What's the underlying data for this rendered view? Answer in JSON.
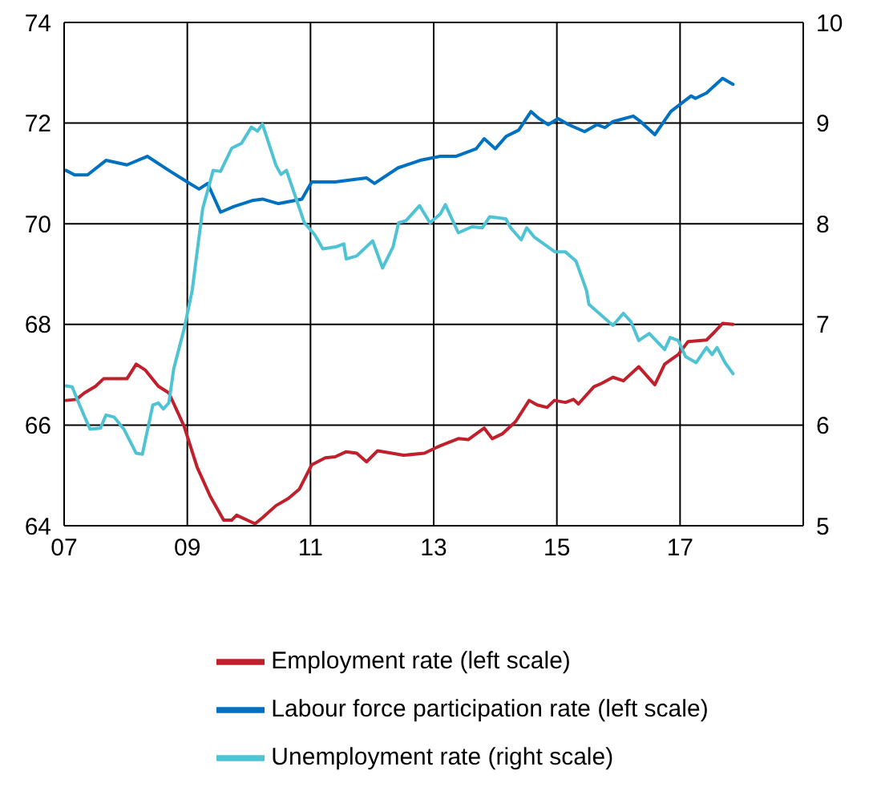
{
  "chart_data": {
    "type": "line",
    "xlim": [
      2007,
      2019
    ],
    "xticks": [
      {
        "value": 2007,
        "label": "07"
      },
      {
        "value": 2009,
        "label": "09"
      },
      {
        "value": 2011,
        "label": "11"
      },
      {
        "value": 2013,
        "label": "13"
      },
      {
        "value": 2015,
        "label": "15"
      },
      {
        "value": 2017,
        "label": "17"
      }
    ],
    "ylim": [
      64,
      74
    ],
    "yticks": [
      64,
      66,
      68,
      70,
      72,
      74
    ],
    "y2lim": [
      5,
      10
    ],
    "y2ticks": [
      5,
      6,
      7,
      8,
      9,
      10
    ],
    "grid": true,
    "legend": "bottom",
    "marker": "none",
    "line_style": "solid",
    "series": [
      {
        "name": "Labour force participation rate (left scale)",
        "color": "#0070c0",
        "x": [
          2007.03,
          2007.17,
          2007.38,
          2007.68,
          2008.02,
          2008.35,
          2008.7,
          2009.04,
          2009.19,
          2009.33,
          2009.54,
          2009.75,
          2010.05,
          2010.22,
          2010.48,
          2010.86,
          2011.02,
          2011.4,
          2011.91,
          2012.04,
          2012.42,
          2012.78,
          2013.11,
          2013.36,
          2013.69,
          2013.82,
          2014.0,
          2014.18,
          2014.38,
          2014.58,
          2014.71,
          2014.86,
          2015.02,
          2015.19,
          2015.45,
          2015.65,
          2015.78,
          2015.91,
          2016.24,
          2016.36,
          2016.59,
          2016.85,
          2017.18,
          2017.25,
          2017.43,
          2017.69,
          2017.86
        ],
        "values": [
          71.06,
          70.97,
          70.97,
          71.26,
          71.17,
          71.34,
          71.06,
          70.8,
          70.69,
          70.8,
          70.23,
          70.34,
          70.46,
          70.49,
          70.4,
          70.49,
          70.83,
          70.83,
          70.91,
          70.8,
          71.11,
          71.26,
          71.34,
          71.34,
          71.49,
          71.69,
          71.49,
          71.74,
          71.86,
          72.23,
          72.09,
          71.97,
          72.09,
          71.97,
          71.83,
          71.97,
          71.91,
          72.03,
          72.14,
          72.03,
          71.77,
          72.23,
          72.54,
          72.49,
          72.6,
          72.89,
          72.77
        ]
      },
      {
        "name": "Employment rate (left scale)",
        "color": "#c0202c",
        "x": [
          2007.03,
          2007.2,
          2007.33,
          2007.51,
          2007.64,
          2007.84,
          2008.02,
          2008.17,
          2008.32,
          2008.53,
          2008.7,
          2008.95,
          2009.16,
          2009.37,
          2009.59,
          2009.72,
          2009.8,
          2010.1,
          2010.22,
          2010.44,
          2010.64,
          2010.82,
          2011.02,
          2011.24,
          2011.4,
          2011.58,
          2011.75,
          2011.91,
          2012.09,
          2012.51,
          2012.85,
          2013.02,
          2013.11,
          2013.4,
          2013.56,
          2013.82,
          2013.95,
          2014.12,
          2014.33,
          2014.55,
          2014.68,
          2014.84,
          2014.96,
          2015.14,
          2015.27,
          2015.35,
          2015.6,
          2015.73,
          2015.91,
          2016.08,
          2016.33,
          2016.59,
          2016.75,
          2016.97,
          2017.13,
          2017.43,
          2017.56,
          2017.69,
          2017.86
        ],
        "values": [
          66.49,
          66.51,
          66.64,
          66.77,
          66.92,
          66.92,
          66.92,
          67.21,
          67.09,
          66.77,
          66.64,
          65.97,
          65.16,
          64.59,
          64.11,
          64.11,
          64.21,
          64.04,
          64.16,
          64.4,
          64.54,
          64.73,
          65.21,
          65.35,
          65.37,
          65.47,
          65.44,
          65.27,
          65.49,
          65.4,
          65.44,
          65.54,
          65.59,
          65.73,
          65.71,
          65.94,
          65.73,
          65.83,
          66.07,
          66.49,
          66.4,
          66.35,
          66.49,
          66.45,
          66.51,
          66.42,
          66.76,
          66.83,
          66.95,
          66.88,
          67.16,
          66.8,
          67.21,
          67.4,
          67.66,
          67.69,
          67.85,
          68.02,
          68.0
        ]
      },
      {
        "name": "Unemployment rate (right scale)",
        "color": "#4fc3d4",
        "axis": "y2",
        "x": [
          2007.03,
          2007.13,
          2007.25,
          2007.42,
          2007.59,
          2007.68,
          2007.81,
          2007.97,
          2008.17,
          2008.27,
          2008.44,
          2008.53,
          2008.61,
          2008.7,
          2008.78,
          2008.95,
          2009.08,
          2009.14,
          2009.25,
          2009.42,
          2009.54,
          2009.72,
          2009.88,
          2010.04,
          2010.14,
          2010.22,
          2010.44,
          2010.52,
          2010.61,
          2010.9,
          2011.07,
          2011.2,
          2011.41,
          2011.54,
          2011.58,
          2011.75,
          2012.01,
          2012.17,
          2012.34,
          2012.43,
          2012.55,
          2012.77,
          2012.94,
          2013.11,
          2013.19,
          2013.4,
          2013.62,
          2013.79,
          2013.91,
          2014.17,
          2014.25,
          2014.42,
          2014.51,
          2014.63,
          2014.97,
          2015.14,
          2015.31,
          2015.48,
          2015.52,
          2015.65,
          2015.91,
          2016.08,
          2016.2,
          2016.33,
          2016.5,
          2016.75,
          2016.84,
          2016.97,
          2017.09,
          2017.26,
          2017.43,
          2017.52,
          2017.6,
          2017.73,
          2017.86
        ],
        "values": [
          6.39,
          6.38,
          6.2,
          5.96,
          5.97,
          6.1,
          6.08,
          5.96,
          5.72,
          5.71,
          6.2,
          6.22,
          6.16,
          6.22,
          6.56,
          6.96,
          7.34,
          7.63,
          8.15,
          8.53,
          8.52,
          8.75,
          8.8,
          8.96,
          8.92,
          8.99,
          8.58,
          8.49,
          8.53,
          8.01,
          7.89,
          7.75,
          7.77,
          7.8,
          7.65,
          7.68,
          7.83,
          7.56,
          7.77,
          8.01,
          8.03,
          8.18,
          8.01,
          8.1,
          8.19,
          7.91,
          7.97,
          7.96,
          8.07,
          8.05,
          7.96,
          7.84,
          7.96,
          7.87,
          7.72,
          7.72,
          7.63,
          7.34,
          7.2,
          7.13,
          6.99,
          7.11,
          7.03,
          6.84,
          6.91,
          6.75,
          6.87,
          6.84,
          6.68,
          6.62,
          6.77,
          6.7,
          6.77,
          6.62,
          6.51
        ]
      }
    ]
  }
}
